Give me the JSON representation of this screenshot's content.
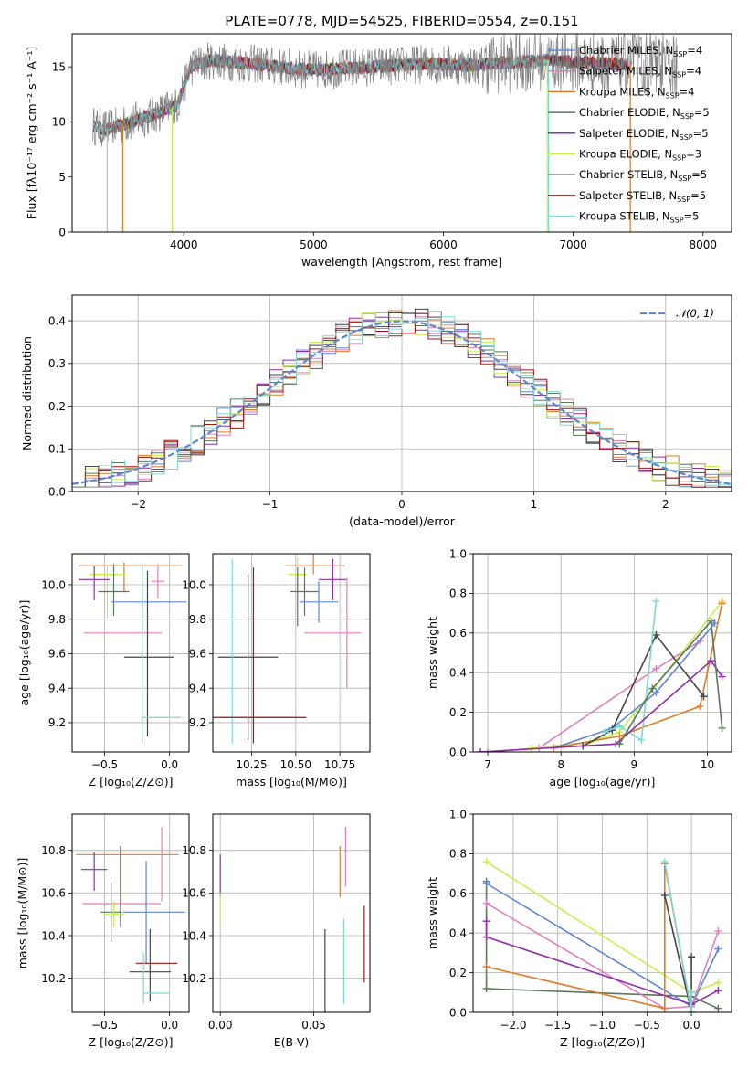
{
  "figure": {
    "title": "PLATE=0778, MJD=54525, FIBERID=0554, z=0.151"
  },
  "colors": {
    "chabrier_miles": "#5f86d3",
    "salpeter_miles": "#e17fbf",
    "kroupa_miles": "#e07b25",
    "chabrier_elodie": "#587a58",
    "salpeter_elodie": "#8e2fa9",
    "kroupa_elodie": "#c8ee50",
    "chabrier_stelib": "#454545",
    "salpeter_stelib": "#a81111",
    "kroupa_stelib": "#7dd8d8",
    "data_gray": "#808080",
    "normal_fit": "#5f86d3"
  },
  "legend_spectrum": [
    {
      "prefix": "Chabrier MILES, N",
      "sub": "SSP",
      "suffix": "=4",
      "color_key": "chabrier_miles"
    },
    {
      "prefix": "Salpeter MILES, N",
      "sub": "SSP",
      "suffix": "=4",
      "color_key": "salpeter_miles"
    },
    {
      "prefix": "Kroupa MILES, N",
      "sub": "SSP",
      "suffix": "=4",
      "color_key": "kroupa_miles"
    },
    {
      "prefix": "Chabrier ELODIE, N",
      "sub": "SSP",
      "suffix": "=5",
      "color_key": "chabrier_elodie"
    },
    {
      "prefix": "Salpeter ELODIE, N",
      "sub": "SSP",
      "suffix": "=5",
      "color_key": "salpeter_elodie"
    },
    {
      "prefix": "Kroupa ELODIE, N",
      "sub": "SSP",
      "suffix": "=3",
      "color_key": "kroupa_elodie"
    },
    {
      "prefix": "Chabrier STELIB, N",
      "sub": "SSP",
      "suffix": "=5",
      "color_key": "chabrier_stelib"
    },
    {
      "prefix": "Salpeter STELIB, N",
      "sub": "SSP",
      "suffix": "=5",
      "color_key": "salpeter_stelib"
    },
    {
      "prefix": "Kroupa STELIB, N",
      "sub": "SSP",
      "suffix": "=5",
      "color_key": "kroupa_stelib"
    }
  ],
  "legend_hist": {
    "label": "𝒩(0, 1)"
  },
  "chart_data": [
    {
      "id": "spectrum",
      "type": "line",
      "title": "PLATE=0778, MJD=54525, FIBERID=0554, z=0.151",
      "xlabel": "wavelength [Angstrom, rest frame]",
      "ylabel": "Flux [fλ10⁻¹⁷ erg cm⁻² s⁻¹ A⁻¹]",
      "xlim": [
        3140,
        8220
      ],
      "ylim": [
        0,
        18
      ],
      "xticks": [
        "4000",
        "5000",
        "6000",
        "7000",
        "8000"
      ],
      "yticks": [
        "0",
        "5",
        "10",
        "15"
      ],
      "grid": false,
      "legend": "right",
      "continuum": {
        "x": [
          3300,
          3400,
          3600,
          3800,
          3950,
          4050,
          4200,
          4500,
          4800,
          5000,
          5300,
          5600,
          5900,
          6200,
          6500,
          6800,
          7100,
          7400
        ],
        "y": [
          9.7,
          9.3,
          10.0,
          10.8,
          11.5,
          15.0,
          15.6,
          15.3,
          14.9,
          14.7,
          14.9,
          15.1,
          15.3,
          15.1,
          15.4,
          15.6,
          15.4,
          15.2
        ]
      },
      "model_drops": [
        {
          "x": 3410,
          "color_key": "kroupa_stelib"
        },
        {
          "x": 3530,
          "color_key": "kroupa_miles"
        },
        {
          "x": 3910,
          "color_key": "kroupa_elodie"
        },
        {
          "x": 6800,
          "color_key": "kroupa_elodie"
        },
        {
          "x": 6810,
          "color_key": "kroupa_stelib"
        },
        {
          "x": 7440,
          "color_key": "kroupa_miles"
        }
      ]
    },
    {
      "id": "residuals",
      "type": "histogram",
      "xlabel": "(data-model)/error",
      "ylabel": "Normed distribution",
      "xlim": [
        -2.5,
        2.5
      ],
      "ylim": [
        0,
        0.46
      ],
      "xticks": [
        "−2",
        "−1",
        "0",
        "1",
        "2"
      ],
      "yticks": [
        "0.0",
        "0.1",
        "0.2",
        "0.3",
        "0.4"
      ],
      "grid": true,
      "legend": "top-right",
      "bin_width": 0.1,
      "reference": {
        "name": "𝒩(0, 1)",
        "mean": 0,
        "sigma": 1
      }
    },
    {
      "id": "age_vs_Z",
      "type": "errorbar",
      "xlabel": "Z [log₁₀(Z/Z⊙)]",
      "ylabel": "age  [log₁₀(age/yr)]",
      "xlim": [
        -0.75,
        0.15
      ],
      "ylim": [
        9.03,
        10.18
      ],
      "xticks": [
        "−0.5",
        "0.0"
      ],
      "yticks": [
        "9.2",
        "9.4",
        "9.6",
        "9.8",
        "10.0"
      ],
      "grid": true,
      "points": [
        {
          "color_key": "kroupa_miles",
          "x": -0.35,
          "xerr": [
            0.35,
            0.45
          ],
          "y": 10.11,
          "yerr": [
            0.15,
            0.02
          ]
        },
        {
          "color_key": "kroupa_elodie",
          "x": -0.48,
          "xerr": [
            0.14,
            0.14
          ],
          "y": 10.06,
          "yerr": [
            0.25,
            0.05
          ]
        },
        {
          "color_key": "salpeter_elodie",
          "x": -0.58,
          "xerr": [
            0.12,
            0.12
          ],
          "y": 10.03,
          "yerr": [
            0.12,
            0.08
          ]
        },
        {
          "color_key": "chabrier_elodie",
          "x": -0.43,
          "xerr": [
            0.12,
            0.12
          ],
          "y": 9.96,
          "yerr": [
            0.14,
            0.16
          ]
        },
        {
          "color_key": "salpeter_miles",
          "x": -0.09,
          "xerr": [
            0.05,
            0.05
          ],
          "y": 10.02,
          "yerr": [
            0.1,
            0.1
          ]
        },
        {
          "color_key": "chabrier_miles",
          "x": -0.21,
          "xerr": [
            0.24,
            0.34
          ],
          "y": 9.9,
          "yerr": [
            0.16,
            0.12
          ]
        },
        {
          "color_key": "salpeter_miles",
          "x": -0.28,
          "xerr": [
            0.38,
            0.22
          ],
          "y": 9.72,
          "yerr": [
            0.0,
            0.0
          ]
        },
        {
          "color_key": "chabrier_stelib",
          "x": -0.17,
          "xerr": [
            0.18,
            0.2
          ],
          "y": 9.58,
          "yerr": [
            0.46,
            0.5
          ]
        },
        {
          "color_key": "kroupa_stelib",
          "x": -0.21,
          "xerr": [
            0.0,
            0.3
          ],
          "y": 9.23,
          "yerr": [
            0.15,
            0.89
          ]
        }
      ]
    },
    {
      "id": "age_vs_mass",
      "type": "errorbar",
      "xlabel": "mass [log₁₀(M/M⊙)]",
      "ylabel": "",
      "xlim": [
        10.03,
        10.92
      ],
      "ylim": [
        9.03,
        10.18
      ],
      "xticks": [
        "10.25",
        "10.50",
        "10.75"
      ],
      "yticks": [
        "9.2",
        "9.4",
        "9.6",
        "9.8",
        "10.0"
      ],
      "grid": true,
      "points": [
        {
          "color_key": "kroupa_miles",
          "x": 10.6,
          "xerr": [
            0.16,
            0.18
          ],
          "y": 10.11,
          "yerr": [
            0.05,
            0.48
          ]
        },
        {
          "color_key": "kroupa_elodie",
          "x": 10.51,
          "xerr": [
            0.05,
            0.05
          ],
          "y": 10.06,
          "yerr": [
            0.1,
            0.1
          ]
        },
        {
          "color_key": "chabrier_elodie",
          "x": 10.51,
          "xerr": [
            0.0,
            0.0
          ],
          "y": 10.08,
          "yerr": [
            0.32,
            0.02
          ]
        },
        {
          "color_key": "salpeter_elodie",
          "x": 10.71,
          "xerr": [
            0.08,
            0.08
          ],
          "y": 10.03,
          "yerr": [
            0.12,
            0.12
          ]
        },
        {
          "color_key": "chabrier_elodie",
          "x": 10.55,
          "xerr": [
            0.08,
            0.08
          ],
          "y": 9.96,
          "yerr": [
            0.14,
            0.14
          ]
        },
        {
          "color_key": "chabrier_miles",
          "x": 10.63,
          "xerr": [
            0.11,
            0.11
          ],
          "y": 9.9,
          "yerr": [
            0.12,
            0.12
          ]
        },
        {
          "color_key": "salpeter_miles",
          "x": 10.79,
          "xerr": [
            0.24,
            0.08
          ],
          "y": 9.72,
          "yerr": [
            0.32,
            0.32
          ]
        },
        {
          "color_key": "chabrier_stelib",
          "x": 10.23,
          "xerr": [
            0.17,
            0.17
          ],
          "y": 9.58,
          "yerr": [
            0.48,
            0.48
          ]
        },
        {
          "color_key": "kroupa_stelib",
          "x": 10.14,
          "xerr": [
            0.06,
            0.38
          ],
          "y": 9.23,
          "yerr": [
            0.15,
            0.92
          ]
        },
        {
          "color_key": "salpeter_stelib",
          "x": 10.26,
          "xerr": [
            0.3,
            0.3
          ],
          "y": 9.23,
          "yerr": [
            0.15,
            0.87
          ]
        }
      ]
    },
    {
      "id": "mass_weight_vs_age",
      "type": "line",
      "xlabel": "age  [log₁₀(age/yr)]",
      "ylabel": "mass weight",
      "xlim": [
        6.8,
        10.33
      ],
      "ylim": [
        0,
        1.0
      ],
      "xticks": [
        "7",
        "8",
        "9",
        "10"
      ],
      "yticks": [
        "0.0",
        "0.2",
        "0.4",
        "0.6",
        "0.8",
        "1.0"
      ],
      "grid": true,
      "series": [
        {
          "color_key": "salpeter_miles",
          "x": [
            7.0,
            7.7,
            9.3,
            9.9
          ],
          "y": [
            0.0,
            0.02,
            0.42,
            0.56
          ]
        },
        {
          "color_key": "kroupa_elodie",
          "x": [
            7.6,
            8.4,
            8.8,
            10.2
          ],
          "y": [
            0.02,
            0.05,
            0.1,
            0.76
          ]
        },
        {
          "color_key": "chabrier_miles",
          "x": [
            7.9,
            8.7,
            9.3,
            10.1
          ],
          "y": [
            0.02,
            0.12,
            0.3,
            0.65
          ]
        },
        {
          "color_key": "kroupa_miles",
          "x": [
            7.9,
            8.8,
            9.9,
            10.2
          ],
          "y": [
            0.02,
            0.08,
            0.23,
            0.75
          ]
        },
        {
          "color_key": "chabrier_stelib",
          "x": [
            8.3,
            8.7,
            9.3,
            9.95
          ],
          "y": [
            0.03,
            0.11,
            0.59,
            0.28
          ]
        },
        {
          "color_key": "kroupa_stelib",
          "x": [
            8.6,
            8.8,
            9.1,
            9.3
          ],
          "y": [
            0.1,
            0.13,
            0.06,
            0.76
          ]
        },
        {
          "color_key": "salpeter_elodie",
          "x": [
            6.9,
            8.75,
            10.05,
            10.2
          ],
          "y": [
            0.0,
            0.04,
            0.46,
            0.38
          ]
        },
        {
          "color_key": "chabrier_elodie",
          "x": [
            8.8,
            9.25,
            10.05,
            10.2
          ],
          "y": [
            0.04,
            0.32,
            0.66,
            0.12
          ]
        }
      ]
    },
    {
      "id": "mass_vs_Z",
      "type": "errorbar",
      "xlabel": "Z [log₁₀(Z/Z⊙)]",
      "ylabel": "mass [log₁₀(M/M⊙)]",
      "xlim": [
        -0.75,
        0.15
      ],
      "ylim": [
        10.04,
        10.97
      ],
      "xticks": [
        "−0.5",
        "0.0"
      ],
      "yticks": [
        "10.2",
        "10.4",
        "10.6",
        "10.8"
      ],
      "grid": true,
      "points": [
        {
          "color_key": "kroupa_miles",
          "x": -0.38,
          "xerr": [
            0.34,
            0.45
          ],
          "y": 10.78,
          "yerr": [
            0.34,
            0.04
          ]
        },
        {
          "color_key": "salpeter_elodie",
          "x": -0.58,
          "xerr": [
            0.1,
            0.1
          ],
          "y": 10.71,
          "yerr": [
            0.1,
            0.08
          ]
        },
        {
          "color_key": "salpeter_miles",
          "x": -0.29,
          "xerr": [
            0.38,
            0.22
          ],
          "y": 10.55,
          "yerr": [
            0.0,
            0.0
          ]
        },
        {
          "color_key": "salpeter_miles",
          "x": -0.06,
          "xerr": [
            0.0,
            0.0
          ],
          "y": 10.7,
          "yerr": [
            0.14,
            0.21
          ]
        },
        {
          "color_key": "chabrier_miles",
          "x": -0.18,
          "xerr": [
            0.18,
            0.3
          ],
          "y": 10.51,
          "yerr": [
            0.24,
            0.24
          ]
        },
        {
          "color_key": "chabrier_elodie",
          "x": -0.45,
          "xerr": [
            0.08,
            0.08
          ],
          "y": 10.51,
          "yerr": [
            0.14,
            0.14
          ]
        },
        {
          "color_key": "kroupa_elodie",
          "x": -0.43,
          "xerr": [
            0.08,
            0.08
          ],
          "y": 10.5,
          "yerr": [
            0.06,
            0.06
          ]
        },
        {
          "color_key": "salpeter_stelib",
          "x": -0.1,
          "xerr": [
            0.16,
            0.16
          ],
          "y": 10.27,
          "yerr": [
            0.0,
            0.0
          ]
        },
        {
          "color_key": "chabrier_stelib",
          "x": -0.15,
          "xerr": [
            0.16,
            0.16
          ],
          "y": 10.23,
          "yerr": [
            0.14,
            0.2
          ]
        },
        {
          "color_key": "kroupa_stelib",
          "x": -0.1,
          "xerr": [
            0.1,
            0.1
          ],
          "y": 10.13,
          "yerr": [
            0.0,
            0.0
          ]
        },
        {
          "color_key": "kroupa_stelib",
          "x": -0.2,
          "xerr": [
            0.0,
            0.0
          ],
          "y": 10.2,
          "yerr": [
            0.12,
            0.12
          ]
        }
      ]
    },
    {
      "id": "mass_vs_EBV",
      "type": "errorbar",
      "xlabel": "E(B-V)",
      "ylabel": "",
      "xlim": [
        -0.004,
        0.08
      ],
      "ylim": [
        10.04,
        10.97
      ],
      "xticks": [
        "0.00",
        "0.05"
      ],
      "yticks": [
        "10.2",
        "10.4",
        "10.6",
        "10.8"
      ],
      "grid": true,
      "points": [
        {
          "color_key": "salpeter_elodie",
          "x": 0.0,
          "xerr": [
            0.0,
            0.0
          ],
          "y": 10.68,
          "yerr": [
            0.1,
            0.1
          ]
        },
        {
          "color_key": "kroupa_elodie",
          "x": 0.0,
          "xerr": [
            0.0,
            0.0
          ],
          "y": 10.52,
          "yerr": [
            0.08,
            0.08
          ]
        },
        {
          "color_key": "salpeter_miles",
          "x": 0.067,
          "xerr": [
            0.0,
            0.0
          ],
          "y": 10.77,
          "yerr": [
            0.14,
            0.14
          ]
        },
        {
          "color_key": "kroupa_miles",
          "x": 0.064,
          "xerr": [
            0.0,
            0.0
          ],
          "y": 10.7,
          "yerr": [
            0.12,
            0.12
          ]
        },
        {
          "color_key": "chabrier_stelib",
          "x": 0.056,
          "xerr": [
            0.0,
            0.0
          ],
          "y": 10.23,
          "yerr": [
            0.2,
            0.2
          ]
        },
        {
          "color_key": "kroupa_stelib",
          "x": 0.066,
          "xerr": [
            0.0,
            0.0
          ],
          "y": 10.28,
          "yerr": [
            0.2,
            0.2
          ]
        },
        {
          "color_key": "salpeter_stelib",
          "x": 0.077,
          "xerr": [
            0.0,
            0.0
          ],
          "y": 10.36,
          "yerr": [
            0.18,
            0.18
          ]
        }
      ]
    },
    {
      "id": "mass_weight_vs_Z",
      "type": "line",
      "xlabel": "Z [log₁₀(Z/Z⊙)]",
      "ylabel": "mass weight",
      "xlim": [
        -2.45,
        0.45
      ],
      "ylim": [
        0,
        1.0
      ],
      "xticks": [
        "−2.0",
        "−1.5",
        "−1.0",
        "−0.5",
        "0.0"
      ],
      "yticks": [
        "0.0",
        "0.2",
        "0.4",
        "0.6",
        "0.8",
        "1.0"
      ],
      "grid": true,
      "series": [
        {
          "color_key": "kroupa_elodie",
          "x": [
            -2.3,
            0.0,
            0.3
          ],
          "y": [
            0.76,
            0.1,
            0.15
          ]
        },
        {
          "color_key": "chabrier_elodie",
          "x": [
            -2.3,
            -2.3,
            0.0,
            0.3
          ],
          "y": [
            0.66,
            0.12,
            0.08,
            0.02
          ]
        },
        {
          "color_key": "chabrier_miles",
          "x": [
            -2.3,
            0.0,
            0.3
          ],
          "y": [
            0.65,
            0.03,
            0.32
          ]
        },
        {
          "color_key": "salpeter_miles",
          "x": [
            -2.3,
            -0.3,
            0.0,
            0.3
          ],
          "y": [
            0.55,
            0.02,
            0.03,
            0.41
          ]
        },
        {
          "color_key": "salpeter_elodie",
          "x": [
            -2.3,
            -2.3,
            0.0,
            0.3
          ],
          "y": [
            0.46,
            0.38,
            0.04,
            0.11
          ]
        },
        {
          "color_key": "kroupa_miles",
          "x": [
            -2.3,
            -0.3,
            -0.3,
            0.0
          ],
          "y": [
            0.23,
            0.02,
            0.75,
            0.0
          ]
        },
        {
          "color_key": "chabrier_stelib",
          "x": [
            -0.3,
            0.0,
            0.0
          ],
          "y": [
            0.59,
            0.0,
            0.28
          ]
        },
        {
          "color_key": "kroupa_stelib",
          "x": [
            -0.3,
            0.0,
            0.0
          ],
          "y": [
            0.76,
            0.0,
            0.1
          ]
        }
      ]
    }
  ]
}
